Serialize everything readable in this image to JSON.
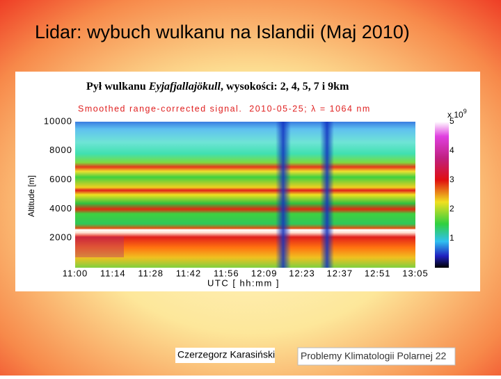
{
  "slide": {
    "title": "Lidar: wybuch wulkanu na Islandii (Maj 2010)",
    "figure": {
      "title_prefix": "Pył wulkanu ",
      "title_italic": "Eyjafjallajökull",
      "title_suffix": ", wysokości: 2, 4, 5, 7 i 9km",
      "subtitle": "Smoothed range-corrected signal.  2010-05-25; λ = 1064 nm",
      "y_label": "Altitude [m]",
      "y_ticks": [
        "10000",
        "8000",
        "6000",
        "4000",
        "2000"
      ],
      "x_label": "UTC [ hh:mm ]",
      "x_ticks": [
        "11:00",
        "11:14",
        "11:28",
        "11:42",
        "11:56",
        "12:09",
        "12:23",
        "12:37",
        "12:51",
        "13:05"
      ],
      "colorbar_scale": "x 10",
      "colorbar_exponent": "9",
      "colorbar_ticks": [
        "5",
        "4",
        "3",
        "2",
        "1"
      ]
    },
    "author": "Czerzegorz Karasiński",
    "footer": "Problemy Klimatologii Polarnej 22"
  }
}
